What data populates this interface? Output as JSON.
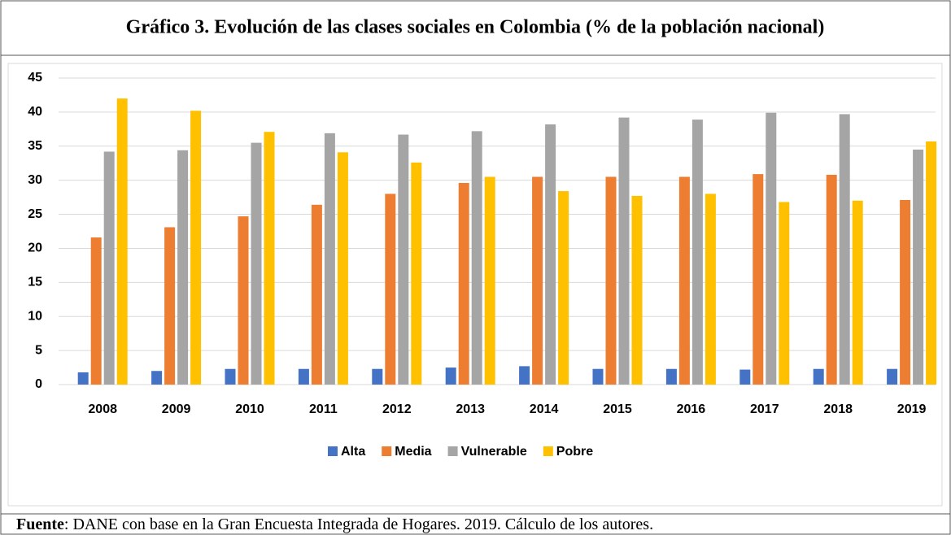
{
  "chart_data": {
    "type": "bar",
    "title": "Gráfico 3. Evolución de las clases sociales en Colombia (% de la población nacional)",
    "categories": [
      "2008",
      "2009",
      "2010",
      "2011",
      "2012",
      "2013",
      "2014",
      "2015",
      "2016",
      "2017",
      "2018",
      "2019"
    ],
    "series": [
      {
        "name": "Alta",
        "color": "#4472c4",
        "values": [
          1.8,
          2.0,
          2.3,
          2.3,
          2.3,
          2.5,
          2.7,
          2.3,
          2.3,
          2.2,
          2.3,
          2.3
        ]
      },
      {
        "name": "Media",
        "color": "#ed7d31",
        "values": [
          21.6,
          23.1,
          24.7,
          26.4,
          28.0,
          29.6,
          30.5,
          30.5,
          30.5,
          30.9,
          30.8,
          27.1
        ]
      },
      {
        "name": "Vulnerable",
        "color": "#a5a5a5",
        "values": [
          34.2,
          34.4,
          35.5,
          36.9,
          36.7,
          37.2,
          38.2,
          39.2,
          38.9,
          39.9,
          39.7,
          34.5
        ]
      },
      {
        "name": "Pobre",
        "color": "#ffc000",
        "values": [
          42.0,
          40.2,
          37.1,
          34.1,
          32.6,
          30.5,
          28.4,
          27.7,
          28.0,
          26.8,
          27.0,
          35.7
        ]
      }
    ],
    "ylim": [
      0,
      45
    ],
    "yticks": [
      0,
      5,
      10,
      15,
      20,
      25,
      30,
      35,
      40,
      45
    ],
    "grid": true,
    "legend": "bottom"
  },
  "footer": {
    "label": "Fuente",
    "text": ": DANE con base en la Gran Encuesta Integrada de Hogares. 2019. Cálculo de los autores."
  }
}
